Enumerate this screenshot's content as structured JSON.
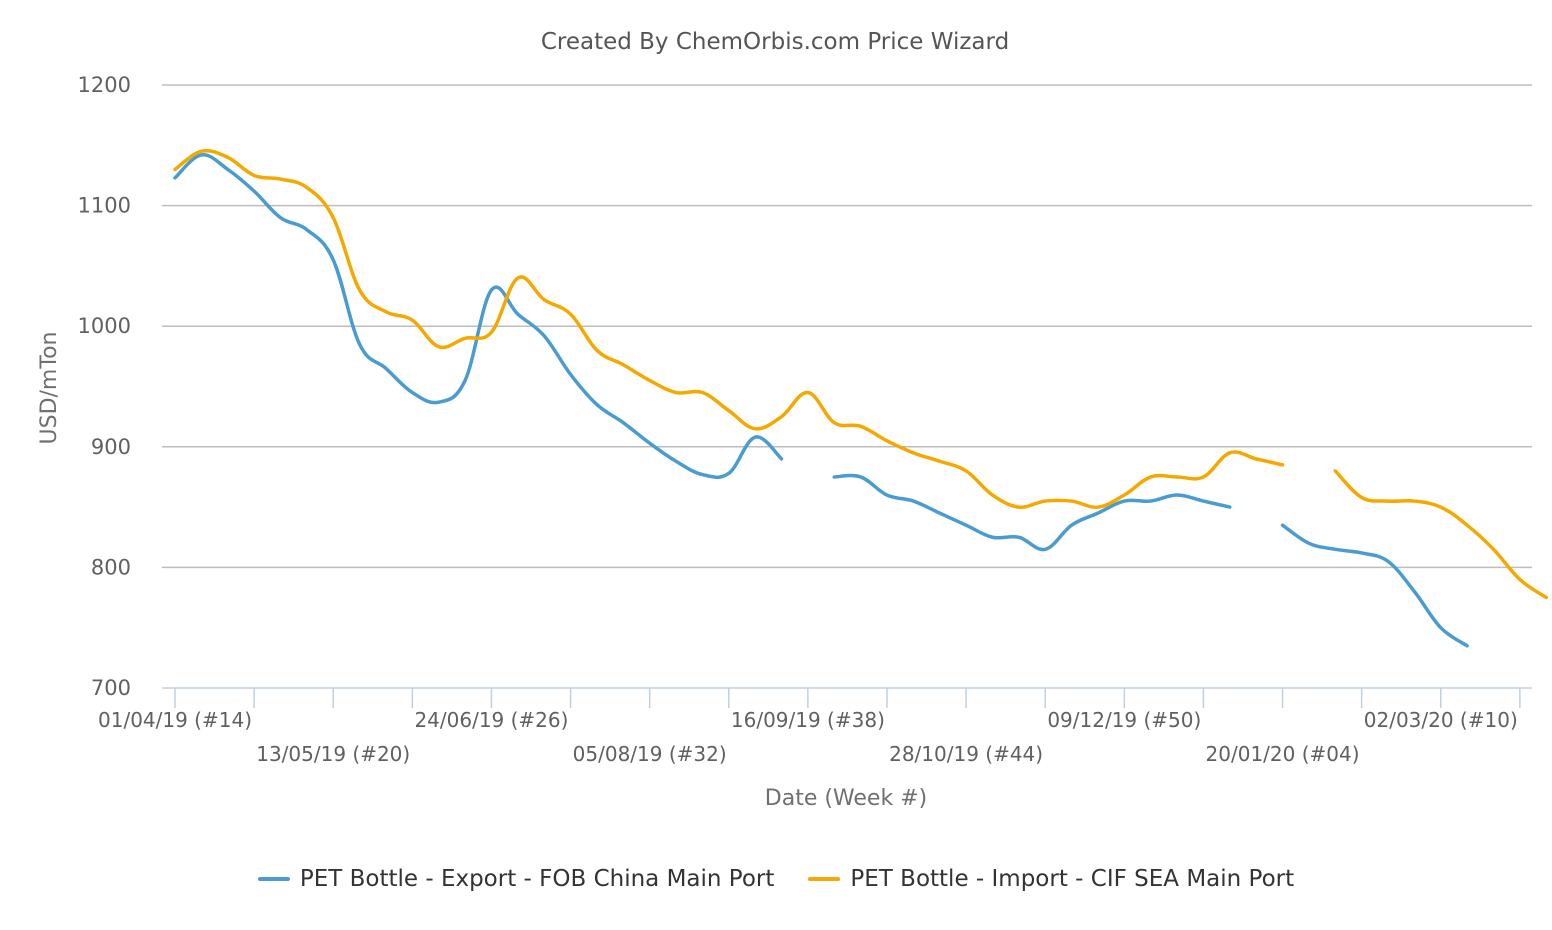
{
  "chart_data": {
    "type": "line",
    "title": "Created By ChemOrbis.com Price Wizard",
    "xlabel": "Date (Week #)",
    "ylabel": "USD/mTon",
    "ylim": [
      700,
      1200
    ],
    "yticks": [
      700,
      800,
      900,
      1000,
      1100,
      1200
    ],
    "grid": true,
    "legend_position": "bottom",
    "x_start": "01/04/19",
    "x_interval": "weekly",
    "x_tick_labels": [
      {
        "week": 0,
        "label": "01/04/19 (#14)"
      },
      {
        "week": 6,
        "label": "13/05/19 (#20)"
      },
      {
        "week": 12,
        "label": "24/06/19 (#26)"
      },
      {
        "week": 18,
        "label": "05/08/19 (#32)"
      },
      {
        "week": 24,
        "label": "16/09/19 (#38)"
      },
      {
        "week": 30,
        "label": "28/10/19 (#44)"
      },
      {
        "week": 36,
        "label": "09/12/19 (#50)"
      },
      {
        "week": 42,
        "label": "20/01/20 (#04)"
      },
      {
        "week": 48,
        "label": "02/03/20 (#10)"
      }
    ],
    "series": [
      {
        "name": "PET Bottle - Export - FOB China Main Port",
        "color": "#4a9bd0",
        "values": [
          1123,
          1142,
          1130,
          1112,
          1090,
          1080,
          1055,
          985,
          965,
          945,
          937,
          955,
          1030,
          1010,
          992,
          960,
          935,
          920,
          903,
          888,
          877,
          878,
          908,
          890,
          null,
          875,
          875,
          860,
          855,
          845,
          835,
          825,
          825,
          815,
          835,
          845,
          855,
          855,
          860,
          855,
          850,
          null,
          835,
          820,
          815,
          812,
          805,
          780,
          750,
          735
        ]
      },
      {
        "name": "PET Bottle - Import - CIF SEA Main Port",
        "color": "#f5a800",
        "values": [
          1130,
          1145,
          1140,
          1125,
          1122,
          1115,
          1090,
          1030,
          1012,
          1005,
          983,
          990,
          995,
          1040,
          1022,
          1010,
          980,
          968,
          955,
          945,
          945,
          930,
          915,
          925,
          945,
          920,
          917,
          905,
          895,
          888,
          880,
          860,
          850,
          855,
          855,
          850,
          860,
          875,
          875,
          875,
          895,
          890,
          885,
          null,
          880,
          858,
          855,
          855,
          850,
          835,
          815,
          790,
          775
        ]
      }
    ]
  }
}
